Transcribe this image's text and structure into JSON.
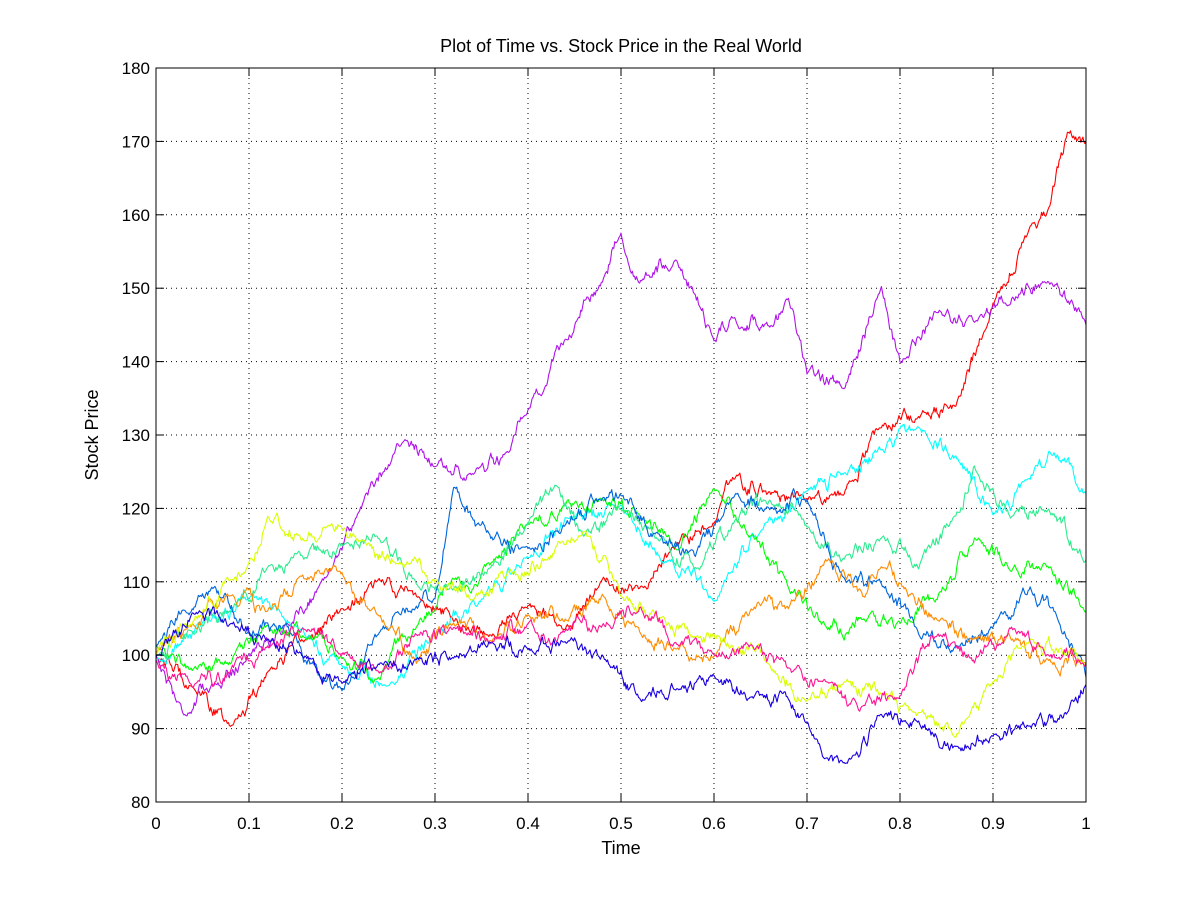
{
  "chart_data": {
    "type": "line",
    "title": "Plot of Time vs. Stock Price in the Real World",
    "xlabel": "Time",
    "ylabel": "Stock Price",
    "xlim": [
      0,
      1
    ],
    "ylim": [
      80,
      180
    ],
    "xticks": [
      0,
      0.1,
      0.2,
      0.3,
      0.4,
      0.5,
      0.6,
      0.7,
      0.8,
      0.9,
      1
    ],
    "xtick_labels": [
      "0",
      "0.1",
      "0.2",
      "0.3",
      "0.4",
      "0.5",
      "0.6",
      "0.7",
      "0.8",
      "0.9",
      "1"
    ],
    "yticks": [
      80,
      90,
      100,
      110,
      120,
      130,
      140,
      150,
      160,
      170,
      180
    ],
    "ytick_labels": [
      "80",
      "90",
      "100",
      "110",
      "120",
      "130",
      "140",
      "150",
      "160",
      "170",
      "180"
    ],
    "grid": true,
    "legend": "none",
    "series": [
      {
        "color": "#ff0000",
        "x": [
          0,
          0.04,
          0.08,
          0.12,
          0.16,
          0.2,
          0.24,
          0.28,
          0.32,
          0.36,
          0.4,
          0.44,
          0.48,
          0.52,
          0.56,
          0.6,
          0.62,
          0.66,
          0.7,
          0.74,
          0.78,
          0.82,
          0.86,
          0.9,
          0.94,
          0.96,
          0.98,
          1
        ],
        "y": [
          100,
          96,
          90,
          98,
          102,
          106,
          110,
          108,
          105,
          103,
          107,
          103,
          111,
          109,
          115,
          118,
          124,
          122,
          121,
          122,
          131,
          133,
          134,
          148,
          158,
          161,
          171,
          170
        ]
      },
      {
        "color": "#b014e8",
        "x": [
          0,
          0.03,
          0.06,
          0.1,
          0.14,
          0.18,
          0.22,
          0.26,
          0.3,
          0.34,
          0.38,
          0.4,
          0.44,
          0.48,
          0.5,
          0.52,
          0.56,
          0.6,
          0.62,
          0.66,
          0.68,
          0.7,
          0.74,
          0.78,
          0.8,
          0.84,
          0.88,
          0.92,
          0.96,
          1
        ],
        "y": [
          100,
          92,
          96,
          100,
          104,
          110,
          120,
          129,
          126,
          125,
          127,
          133,
          143,
          151,
          158,
          151,
          154,
          143,
          146,
          145,
          148,
          138,
          137,
          150,
          140,
          147,
          145,
          149,
          151,
          145
        ]
      },
      {
        "color": "#00ffff",
        "x": [
          0,
          0.05,
          0.1,
          0.15,
          0.2,
          0.25,
          0.3,
          0.35,
          0.4,
          0.45,
          0.5,
          0.55,
          0.6,
          0.65,
          0.7,
          0.74,
          0.78,
          0.82,
          0.86,
          0.9,
          0.94,
          0.96,
          1
        ],
        "y": [
          99,
          104,
          108,
          104,
          98,
          96,
          103,
          108,
          113,
          119,
          120,
          113,
          108,
          117,
          122,
          125,
          128,
          131,
          127,
          119,
          123,
          128,
          122
        ]
      },
      {
        "color": "#00ff00",
        "x": [
          0,
          0.04,
          0.08,
          0.12,
          0.16,
          0.2,
          0.24,
          0.28,
          0.32,
          0.36,
          0.4,
          0.44,
          0.48,
          0.52,
          0.56,
          0.6,
          0.64,
          0.68,
          0.72,
          0.76,
          0.8,
          0.84,
          0.88,
          0.92,
          0.96,
          1
        ],
        "y": [
          101,
          98,
          99,
          104,
          103,
          100,
          97,
          104,
          110,
          112,
          118,
          120,
          122,
          119,
          114,
          123,
          116,
          109,
          104,
          105,
          104,
          108,
          116,
          112,
          112,
          106
        ]
      },
      {
        "color": "#2dec8d",
        "x": [
          0,
          0.04,
          0.08,
          0.12,
          0.16,
          0.2,
          0.24,
          0.28,
          0.32,
          0.36,
          0.4,
          0.43,
          0.46,
          0.5,
          0.54,
          0.58,
          0.62,
          0.66,
          0.7,
          0.74,
          0.78,
          0.82,
          0.86,
          0.88,
          0.92,
          0.96,
          1
        ],
        "y": [
          100,
          103,
          106,
          112,
          113,
          115,
          116,
          110,
          109,
          112,
          118,
          123,
          116,
          120,
          116,
          112,
          118,
          121,
          117,
          113,
          116,
          112,
          119,
          126,
          119,
          120,
          113
        ]
      },
      {
        "color": "#0066dd",
        "x": [
          0,
          0.03,
          0.06,
          0.1,
          0.14,
          0.18,
          0.2,
          0.24,
          0.28,
          0.3,
          0.32,
          0.36,
          0.4,
          0.44,
          0.48,
          0.5,
          0.54,
          0.58,
          0.62,
          0.66,
          0.7,
          0.74,
          0.78,
          0.82,
          0.86,
          0.9,
          0.94,
          0.97,
          1
        ],
        "y": [
          101,
          106,
          109,
          103,
          104,
          96,
          95,
          103,
          107,
          108,
          123,
          116,
          114,
          118,
          121,
          122,
          116,
          113,
          122,
          120,
          121,
          110,
          110,
          103,
          101,
          104,
          109,
          105,
          97
        ]
      },
      {
        "color": "#ff8c00",
        "x": [
          0,
          0.04,
          0.08,
          0.12,
          0.16,
          0.2,
          0.24,
          0.28,
          0.32,
          0.36,
          0.4,
          0.44,
          0.48,
          0.52,
          0.56,
          0.6,
          0.64,
          0.68,
          0.72,
          0.76,
          0.78,
          0.8,
          0.84,
          0.88,
          0.92,
          0.96,
          1
        ],
        "y": [
          100,
          104,
          108,
          106,
          110,
          111,
          105,
          99,
          104,
          102,
          105,
          105,
          108,
          103,
          101,
          100,
          106,
          106,
          113,
          108,
          112,
          110,
          105,
          102,
          102,
          99,
          99
        ]
      },
      {
        "color": "#d8ff00",
        "x": [
          0,
          0.04,
          0.08,
          0.1,
          0.12,
          0.16,
          0.18,
          0.22,
          0.26,
          0.3,
          0.34,
          0.38,
          0.42,
          0.46,
          0.5,
          0.54,
          0.58,
          0.62,
          0.66,
          0.7,
          0.74,
          0.78,
          0.82,
          0.86,
          0.9,
          0.94,
          0.98,
          1
        ],
        "y": [
          100,
          105,
          110,
          113,
          119,
          116,
          118,
          115,
          113,
          110,
          108,
          111,
          113,
          117,
          108,
          105,
          103,
          101,
          99,
          94,
          96,
          95,
          92,
          89,
          96,
          102,
          100,
          98
        ]
      },
      {
        "color": "#ff1493",
        "x": [
          0,
          0.04,
          0.08,
          0.12,
          0.16,
          0.2,
          0.24,
          0.28,
          0.32,
          0.36,
          0.4,
          0.44,
          0.48,
          0.52,
          0.56,
          0.6,
          0.64,
          0.68,
          0.72,
          0.76,
          0.8,
          0.84,
          0.88,
          0.92,
          0.96,
          1
        ],
        "y": [
          99,
          95,
          98,
          101,
          104,
          100,
          98,
          103,
          104,
          102,
          104,
          103,
          104,
          107,
          102,
          100,
          101,
          98,
          96,
          93,
          95,
          103,
          99,
          104,
          100,
          99
        ]
      },
      {
        "color": "#1a00e0",
        "x": [
          0,
          0.04,
          0.08,
          0.12,
          0.16,
          0.2,
          0.24,
          0.28,
          0.32,
          0.36,
          0.4,
          0.44,
          0.48,
          0.52,
          0.56,
          0.6,
          0.64,
          0.68,
          0.7,
          0.72,
          0.74,
          0.78,
          0.82,
          0.86,
          0.9,
          0.94,
          0.98,
          1
        ],
        "y": [
          100,
          106,
          104,
          102,
          100,
          96,
          99,
          99,
          100,
          102,
          101,
          102,
          100,
          94,
          96,
          97,
          94,
          94,
          91,
          86,
          85,
          92,
          91,
          87,
          89,
          90,
          92,
          96
        ]
      }
    ]
  }
}
